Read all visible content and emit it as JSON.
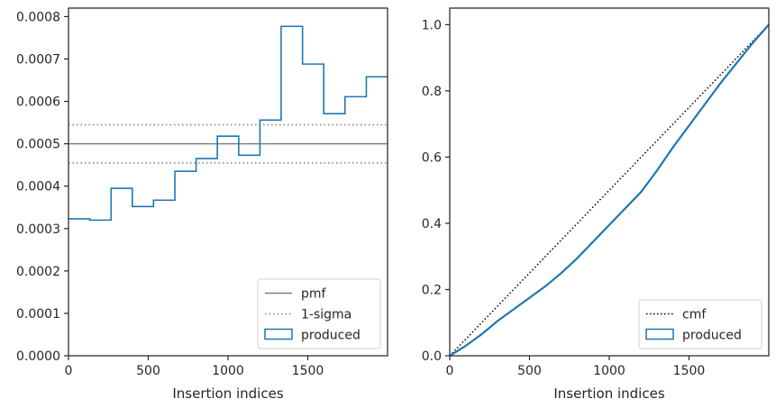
{
  "chart_data": [
    {
      "type": "step",
      "xlabel": "Insertion indices",
      "ylabel": "",
      "xlim": [
        0,
        2000
      ],
      "ylim": [
        0,
        0.00082
      ],
      "grid": false,
      "xticks": [
        0,
        500,
        1000,
        1500
      ],
      "xtick_labels": [
        "0",
        "500",
        "1000",
        "1500"
      ],
      "yticks": [
        0,
        0.0001,
        0.0002,
        0.0003,
        0.0004,
        0.0005,
        0.0006,
        0.0007,
        0.0008
      ],
      "ytick_labels": [
        "0.0000",
        "0.0001",
        "0.0002",
        "0.0003",
        "0.0004",
        "0.0005",
        "0.0006",
        "0.0007",
        "0.0008"
      ],
      "legend_position": "lower-right",
      "reference_lines": [
        {
          "name": "pmf",
          "y": 0.0005,
          "style": "solid",
          "color": "#808080"
        },
        {
          "name": "1-sigma",
          "y": 0.000545,
          "style": "dotted",
          "color": "#808080"
        },
        {
          "name": "1-sigma",
          "y": 0.000455,
          "style": "dotted",
          "color": "#808080"
        }
      ],
      "series": [
        {
          "name": "produced",
          "color": "#1f77b4",
          "bin_edges": [
            0,
            133,
            267,
            400,
            533,
            667,
            800,
            933,
            1067,
            1200,
            1333,
            1467,
            1600,
            1733,
            1867,
            2000
          ],
          "values": [
            0.000323,
            0.00032,
            0.000395,
            0.000352,
            0.000367,
            0.000435,
            0.000465,
            0.000518,
            0.000473,
            0.000556,
            0.000777,
            0.000688,
            0.000571,
            0.000611,
            0.000658
          ]
        }
      ],
      "legend": [
        "pmf",
        "1-sigma",
        "produced"
      ]
    },
    {
      "type": "line",
      "xlabel": "Insertion indices",
      "ylabel": "",
      "xlim": [
        0,
        2000
      ],
      "ylim": [
        0,
        1.05
      ],
      "grid": false,
      "xticks": [
        0,
        500,
        1000,
        1500
      ],
      "xtick_labels": [
        "0",
        "500",
        "1000",
        "1500"
      ],
      "yticks": [
        0,
        0.2,
        0.4,
        0.6,
        0.8,
        1.0
      ],
      "ytick_labels": [
        "0.0",
        "0.2",
        "0.4",
        "0.6",
        "0.8",
        "1.0"
      ],
      "legend_position": "lower-right",
      "series": [
        {
          "name": "cmf",
          "style": "dotted",
          "color": "#000000",
          "x": [
            0,
            2000
          ],
          "y": [
            0,
            1.0
          ]
        },
        {
          "name": "produced",
          "style": "solid",
          "color": "#1f77b4",
          "x": [
            0,
            100,
            200,
            300,
            400,
            500,
            600,
            700,
            800,
            900,
            1000,
            1100,
            1200,
            1300,
            1400,
            1500,
            1600,
            1700,
            1800,
            1900,
            2000
          ],
          "y": [
            0,
            0.03,
            0.065,
            0.105,
            0.14,
            0.175,
            0.21,
            0.25,
            0.295,
            0.345,
            0.395,
            0.445,
            0.495,
            0.56,
            0.63,
            0.695,
            0.76,
            0.825,
            0.885,
            0.945,
            1.0
          ]
        }
      ],
      "legend": [
        "cmf",
        "produced"
      ]
    }
  ]
}
